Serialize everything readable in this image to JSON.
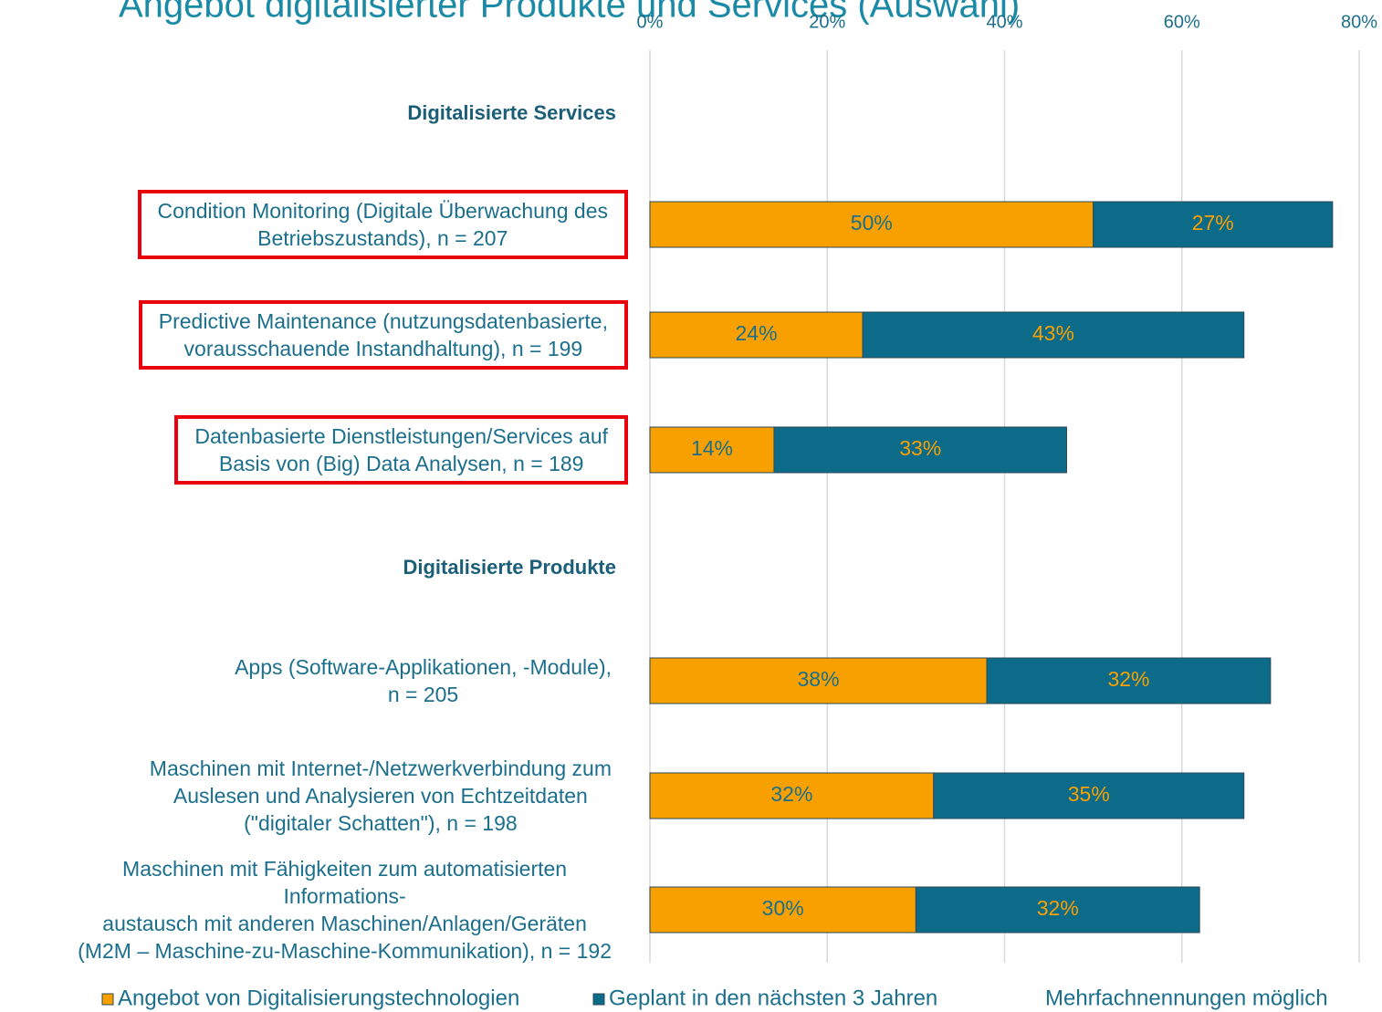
{
  "chart_data": {
    "type": "stacked_barh",
    "title": "Angebot digitalisierter Produkte und Services (Auswahl)",
    "group_labels": [
      "Digitalisierte Services",
      "Digitalisierte Produkte"
    ],
    "categories": [
      "Condition Monitoring (Digitale Überwachung des\nBetriebszustands), n = 207",
      "Predictive Maintenance (nutzungsdatenbasierte,\nvorausschauende Instandhaltung), n = 199",
      "Datenbasierte Dienstleistungen/Services auf\nBasis von (Big) Data Analysen, n = 189",
      "Apps (Software-Applikationen, -Module),\nn = 205",
      "Maschinen mit Internet-/Netzwerkverbindung zum\nAuslesen und Analysieren von Echtzeitdaten\n(\"digitaler Schatten\"), n = 198",
      "Maschinen mit Fähigkeiten zum automatisierten\nInformations-\naustausch mit anderen Maschinen/Anlagen/Geräten\n(M2M – Maschine-zu-Maschine-Kommunikation), n = 192"
    ],
    "highlighted": [
      true,
      true,
      true,
      false,
      false,
      false
    ],
    "highlight_color": "#e8000b",
    "series": [
      {
        "name": "Angebot von Digitalisierungstechnologien",
        "color": "#f7a000",
        "label_color": "#1b6f8c",
        "values": [
          50,
          24,
          14,
          38,
          32,
          30
        ],
        "value_labels": [
          "50%",
          "24%",
          "14%",
          "38%",
          "32%",
          "30%"
        ]
      },
      {
        "name": "Geplant in den nächsten 3 Jahren",
        "color": "#0d6b8a",
        "label_color": "#f7a000",
        "values": [
          27,
          43,
          33,
          32,
          35,
          32
        ],
        "value_labels": [
          "27%",
          "43%",
          "33%",
          "32%",
          "35%",
          "32%"
        ]
      }
    ],
    "xlim": [
      0,
      80
    ],
    "xticks": [
      {
        "value": 0,
        "label": "0%"
      },
      {
        "value": 20,
        "label": "20%"
      },
      {
        "value": 40,
        "label": "40%"
      },
      {
        "value": 60,
        "label": "60%"
      },
      {
        "value": 80,
        "label": "80%"
      }
    ],
    "grid": true,
    "note": "Mehrfachnennungen möglich"
  }
}
